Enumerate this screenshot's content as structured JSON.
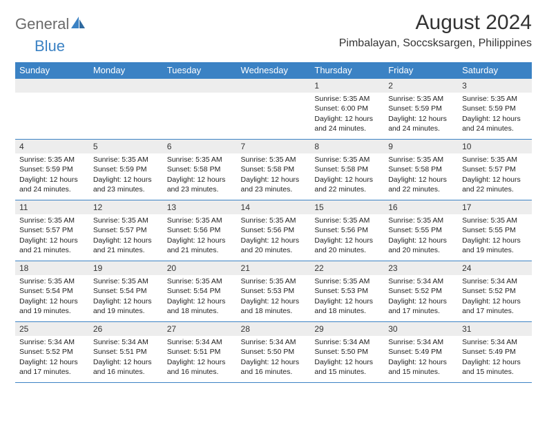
{
  "logo": {
    "part1": "General",
    "part2": "Blue"
  },
  "title": "August 2024",
  "location": "Pimbalayan, Soccsksargen, Philippines",
  "weekdays": [
    "Sunday",
    "Monday",
    "Tuesday",
    "Wednesday",
    "Thursday",
    "Friday",
    "Saturday"
  ],
  "colors": {
    "header_bg": "#3b82c4",
    "header_text": "#ffffff",
    "daynum_bg": "#ededed",
    "border": "#3b82c4",
    "text": "#222222",
    "logo_gray": "#6a6a6a",
    "logo_blue": "#3b82c4",
    "background": "#ffffff"
  },
  "typography": {
    "title_fontsize": 30,
    "location_fontsize": 16,
    "weekday_fontsize": 13,
    "daynum_fontsize": 12,
    "cell_fontsize": 10.5,
    "logo_fontsize": 22
  },
  "layout": {
    "cols": 7,
    "rows": 5,
    "first_day_col": 4
  },
  "days": [
    {
      "n": 1,
      "sr": "5:35 AM",
      "ss": "6:00 PM",
      "dl": "12 hours and 24 minutes."
    },
    {
      "n": 2,
      "sr": "5:35 AM",
      "ss": "5:59 PM",
      "dl": "12 hours and 24 minutes."
    },
    {
      "n": 3,
      "sr": "5:35 AM",
      "ss": "5:59 PM",
      "dl": "12 hours and 24 minutes."
    },
    {
      "n": 4,
      "sr": "5:35 AM",
      "ss": "5:59 PM",
      "dl": "12 hours and 24 minutes."
    },
    {
      "n": 5,
      "sr": "5:35 AM",
      "ss": "5:59 PM",
      "dl": "12 hours and 23 minutes."
    },
    {
      "n": 6,
      "sr": "5:35 AM",
      "ss": "5:58 PM",
      "dl": "12 hours and 23 minutes."
    },
    {
      "n": 7,
      "sr": "5:35 AM",
      "ss": "5:58 PM",
      "dl": "12 hours and 23 minutes."
    },
    {
      "n": 8,
      "sr": "5:35 AM",
      "ss": "5:58 PM",
      "dl": "12 hours and 22 minutes."
    },
    {
      "n": 9,
      "sr": "5:35 AM",
      "ss": "5:58 PM",
      "dl": "12 hours and 22 minutes."
    },
    {
      "n": 10,
      "sr": "5:35 AM",
      "ss": "5:57 PM",
      "dl": "12 hours and 22 minutes."
    },
    {
      "n": 11,
      "sr": "5:35 AM",
      "ss": "5:57 PM",
      "dl": "12 hours and 21 minutes."
    },
    {
      "n": 12,
      "sr": "5:35 AM",
      "ss": "5:57 PM",
      "dl": "12 hours and 21 minutes."
    },
    {
      "n": 13,
      "sr": "5:35 AM",
      "ss": "5:56 PM",
      "dl": "12 hours and 21 minutes."
    },
    {
      "n": 14,
      "sr": "5:35 AM",
      "ss": "5:56 PM",
      "dl": "12 hours and 20 minutes."
    },
    {
      "n": 15,
      "sr": "5:35 AM",
      "ss": "5:56 PM",
      "dl": "12 hours and 20 minutes."
    },
    {
      "n": 16,
      "sr": "5:35 AM",
      "ss": "5:55 PM",
      "dl": "12 hours and 20 minutes."
    },
    {
      "n": 17,
      "sr": "5:35 AM",
      "ss": "5:55 PM",
      "dl": "12 hours and 19 minutes."
    },
    {
      "n": 18,
      "sr": "5:35 AM",
      "ss": "5:54 PM",
      "dl": "12 hours and 19 minutes."
    },
    {
      "n": 19,
      "sr": "5:35 AM",
      "ss": "5:54 PM",
      "dl": "12 hours and 19 minutes."
    },
    {
      "n": 20,
      "sr": "5:35 AM",
      "ss": "5:54 PM",
      "dl": "12 hours and 18 minutes."
    },
    {
      "n": 21,
      "sr": "5:35 AM",
      "ss": "5:53 PM",
      "dl": "12 hours and 18 minutes."
    },
    {
      "n": 22,
      "sr": "5:35 AM",
      "ss": "5:53 PM",
      "dl": "12 hours and 18 minutes."
    },
    {
      "n": 23,
      "sr": "5:34 AM",
      "ss": "5:52 PM",
      "dl": "12 hours and 17 minutes."
    },
    {
      "n": 24,
      "sr": "5:34 AM",
      "ss": "5:52 PM",
      "dl": "12 hours and 17 minutes."
    },
    {
      "n": 25,
      "sr": "5:34 AM",
      "ss": "5:52 PM",
      "dl": "12 hours and 17 minutes."
    },
    {
      "n": 26,
      "sr": "5:34 AM",
      "ss": "5:51 PM",
      "dl": "12 hours and 16 minutes."
    },
    {
      "n": 27,
      "sr": "5:34 AM",
      "ss": "5:51 PM",
      "dl": "12 hours and 16 minutes."
    },
    {
      "n": 28,
      "sr": "5:34 AM",
      "ss": "5:50 PM",
      "dl": "12 hours and 16 minutes."
    },
    {
      "n": 29,
      "sr": "5:34 AM",
      "ss": "5:50 PM",
      "dl": "12 hours and 15 minutes."
    },
    {
      "n": 30,
      "sr": "5:34 AM",
      "ss": "5:49 PM",
      "dl": "12 hours and 15 minutes."
    },
    {
      "n": 31,
      "sr": "5:34 AM",
      "ss": "5:49 PM",
      "dl": "12 hours and 15 minutes."
    }
  ],
  "labels": {
    "sunrise": "Sunrise: ",
    "sunset": "Sunset: ",
    "daylight": "Daylight: "
  }
}
